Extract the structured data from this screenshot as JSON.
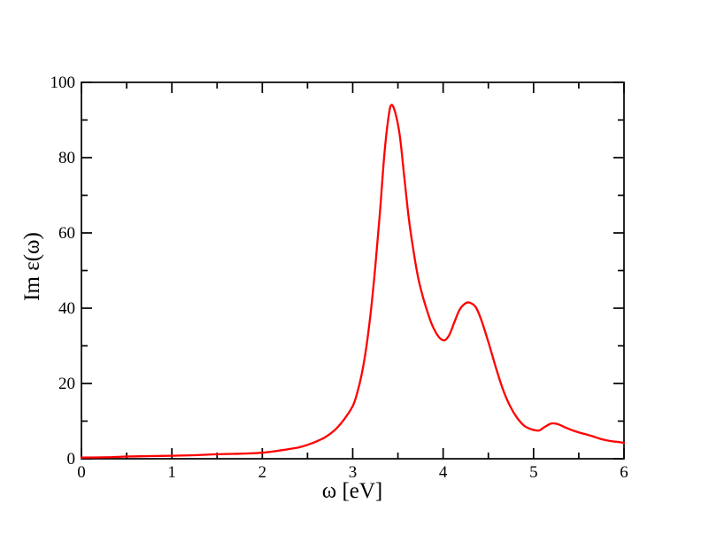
{
  "figure": {
    "background": "#ffffff",
    "frame_color": "#000000"
  },
  "chart_data": {
    "type": "line",
    "title": "",
    "xlabel": "ω [eV]",
    "ylabel": "Im ε(ω)",
    "xlim": [
      0,
      6
    ],
    "ylim": [
      0,
      100
    ],
    "x_major_step": 1,
    "x_minor_step": 0.5,
    "y_major_step": 20,
    "y_minor_step": 10,
    "x_tick_labels": [
      "0",
      "1",
      "2",
      "3",
      "4",
      "5",
      "6"
    ],
    "y_tick_labels": [
      "0",
      "20",
      "40",
      "60",
      "80",
      "100"
    ],
    "grid": false,
    "legend": null,
    "series": [
      {
        "name": "Im epsilon(omega)",
        "color": "#ff0000",
        "x": [
          0,
          0.3,
          0.5,
          0.75,
          1.0,
          1.25,
          1.5,
          1.75,
          2.0,
          2.25,
          2.4,
          2.5,
          2.6,
          2.7,
          2.8,
          2.9,
          3.0,
          3.05,
          3.1,
          3.15,
          3.2,
          3.25,
          3.3,
          3.35,
          3.4,
          3.43,
          3.47,
          3.52,
          3.57,
          3.62,
          3.67,
          3.72,
          3.77,
          3.82,
          3.87,
          3.92,
          3.97,
          4.02,
          4.07,
          4.12,
          4.18,
          4.24,
          4.29,
          4.36,
          4.42,
          4.5,
          4.58,
          4.66,
          4.74,
          4.82,
          4.9,
          4.98,
          5.06,
          5.12,
          5.2,
          5.28,
          5.36,
          5.46,
          5.56,
          5.65,
          5.75,
          5.85,
          5.95,
          6.0
        ],
        "y": [
          0.3,
          0.4,
          0.6,
          0.7,
          0.8,
          0.95,
          1.2,
          1.35,
          1.6,
          2.4,
          3.0,
          3.7,
          4.6,
          5.8,
          7.6,
          10.3,
          14.0,
          17.5,
          22.5,
          29.5,
          39.0,
          51.0,
          65.0,
          81.0,
          91.5,
          94.0,
          92.0,
          86.0,
          75.0,
          64.0,
          55.5,
          48.5,
          43.5,
          39.5,
          36.0,
          33.5,
          31.9,
          31.5,
          33.0,
          36.0,
          39.5,
          41.2,
          41.5,
          40.3,
          37.0,
          31.0,
          24.5,
          18.5,
          14.0,
          10.8,
          8.7,
          7.8,
          7.5,
          8.4,
          9.4,
          9.1,
          8.2,
          7.3,
          6.6,
          6.0,
          5.2,
          4.7,
          4.4,
          4.2
        ]
      }
    ]
  }
}
